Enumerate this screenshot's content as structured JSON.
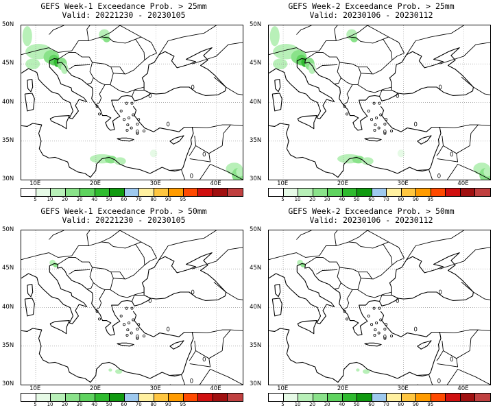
{
  "colors": {
    "levels": [
      "#ffffff",
      "#e6fae6",
      "#b8f0b8",
      "#8ae28a",
      "#5fd35f",
      "#2fbb2f",
      "#109a10",
      "#9ec9ee",
      "#fff0a0",
      "#ffc640",
      "#ff9b00",
      "#ff4a00",
      "#d01010",
      "#a01010",
      "#c04040"
    ],
    "coast": "#000000",
    "grid": "#9a9a9a"
  },
  "axes": {
    "lat_labels": [
      "50N",
      "45N",
      "40N",
      "35N",
      "30N"
    ],
    "lon_labels": [
      "10E",
      "20E",
      "30E",
      "40E"
    ]
  },
  "colorbar": {
    "ticks": [
      "5",
      "10",
      "20",
      "30",
      "40",
      "50",
      "60",
      "70",
      "80",
      "90",
      "95"
    ]
  },
  "panels": [
    {
      "title1": "GEFS Week-1 Exceedance Prob. > 25mm",
      "title2": "Valid: 20221230 - 20230105",
      "threshold": 25,
      "week": 1
    },
    {
      "title1": "GEFS Week-2 Exceedance Prob. > 25mm",
      "title2": "Valid: 20230106 - 20230112",
      "threshold": 25,
      "week": 2
    },
    {
      "title1": "GEFS Week-1 Exceedance Prob. > 50mm",
      "title2": "Valid: 20221230 - 20230105",
      "threshold": 50,
      "week": 1
    },
    {
      "title1": "GEFS Week-2 Exceedance Prob. > 50mm",
      "title2": "Valid: 20230106 - 20230112",
      "threshold": 50,
      "week": 2
    }
  ]
}
